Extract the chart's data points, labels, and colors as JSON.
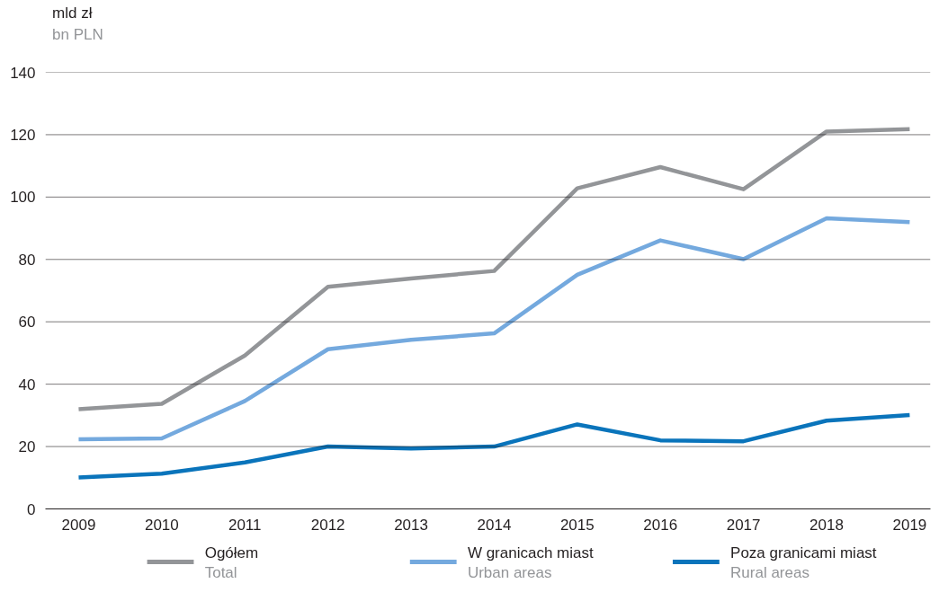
{
  "chart_data": {
    "type": "line",
    "ylabel": "mld zł\nbn PLN",
    "categories": [
      "2009",
      "2010",
      "2011",
      "2012",
      "2013",
      "2014",
      "2015",
      "2016",
      "2017",
      "2018",
      "2019"
    ],
    "series": [
      {
        "name": "Ogółem\nTotal",
        "color": "#939598",
        "values": [
          32,
          33.7,
          49.2,
          71.2,
          73.9,
          76.3,
          102.8,
          109.6,
          102.5,
          121,
          121.8
        ]
      },
      {
        "name": "W granicach miast\nUrban areas",
        "color": "#74a9de",
        "values": [
          22.3,
          22.6,
          34.6,
          51.2,
          54.2,
          56.3,
          75.1,
          86.1,
          80.1,
          93.2,
          92
        ]
      },
      {
        "name": "Poza granicami miast\nRural areas",
        "color": "#0a74bb",
        "values": [
          10.1,
          11.3,
          14.9,
          20,
          19.4,
          20,
          27.1,
          22,
          21.7,
          28.3,
          30.1
        ]
      }
    ],
    "ylim": [
      0,
      140
    ],
    "yticks": [
      0,
      20,
      40,
      60,
      80,
      100,
      120,
      140
    ],
    "grid": "y",
    "legend": "bottom",
    "marker": "none",
    "line_style": "solid"
  }
}
